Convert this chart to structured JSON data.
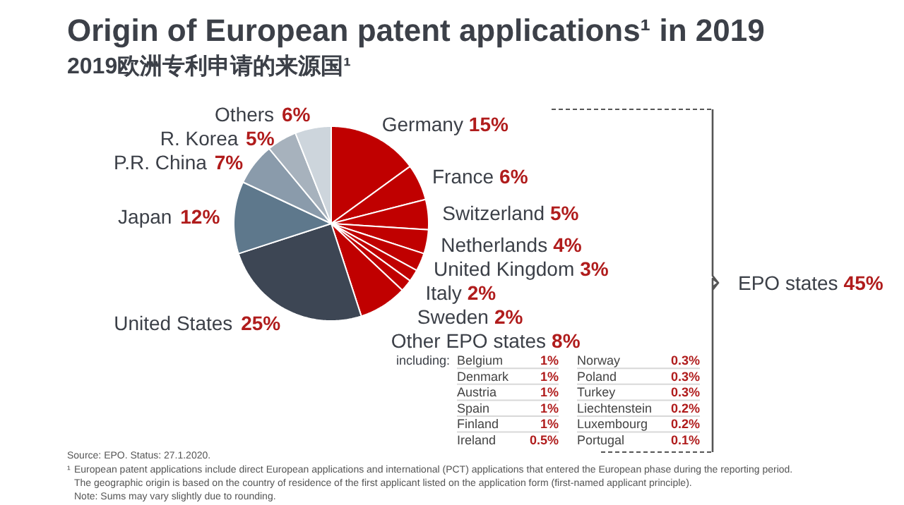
{
  "chart_data": {
    "type": "pie",
    "title": "Origin of European patent applications¹ in 2019",
    "subtitle": "2019欧洲专利申请的来源国¹",
    "categories": [
      "Germany",
      "France",
      "Switzerland",
      "Netherlands",
      "United Kingdom",
      "Italy",
      "Sweden",
      "Other EPO states",
      "United States",
      "Japan",
      "P.R. China",
      "R. Korea",
      "Others"
    ],
    "values": [
      15,
      6,
      5,
      4,
      3,
      2,
      2,
      8,
      25,
      12,
      7,
      5,
      6
    ],
    "colors": [
      "#c00000",
      "#c00000",
      "#c00000",
      "#c00000",
      "#c00000",
      "#c00000",
      "#c00000",
      "#c00000",
      "#3d4654",
      "#5e788c",
      "#8a9bab",
      "#a7b2bd",
      "#cdd5dc"
    ],
    "value_labels": [
      "15%",
      "6%",
      "5%",
      "4%",
      "3%",
      "2%",
      "2%",
      "8%",
      "25%",
      "12%",
      "7%",
      "5%",
      "6%"
    ],
    "annotations": [
      "EPO states 45%",
      "including:",
      "Belgium 1%",
      "Denmark 1%",
      "Austria 1%",
      "Spain 1%",
      "Finland 1%",
      "Ireland 0.5%",
      "Norway 0.3%",
      "Poland 0.3%",
      "Turkey 0.3%",
      "Liechtenstein 0.2%",
      "Luxembourg 0.2%",
      "Portugal 0.1%",
      "Source: EPO. Status: 27.1.2020.",
      "¹ European patent applications include direct European applications and international (PCT) applications that entered the European phase during the reporting period.",
      "The geographic origin is based on the country of residence of the first applicant listed on the application form (first-named applicant principle).",
      "Note: Sums may vary slightly due to rounding."
    ]
  }
}
